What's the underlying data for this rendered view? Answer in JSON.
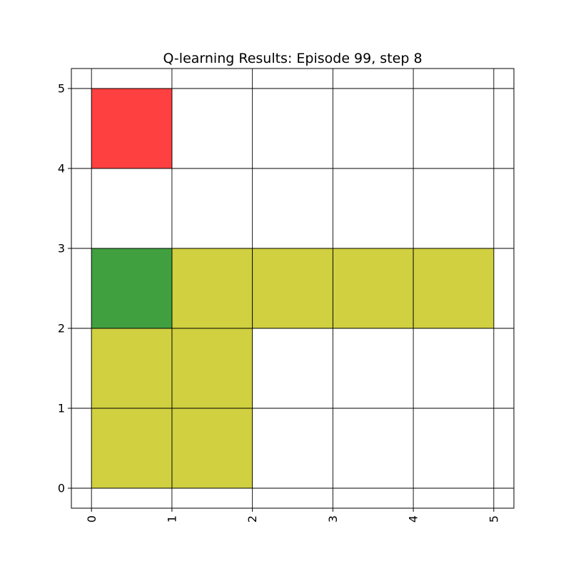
{
  "chart_data": {
    "type": "heatmap",
    "title": "Q-learning Results: Episode 99, step 8",
    "xlabel": "",
    "ylabel": "",
    "xlim": [
      -0.25,
      5.25
    ],
    "ylim": [
      -0.25,
      5.25
    ],
    "x_ticks": [
      "0",
      "1",
      "2",
      "3",
      "4",
      "5"
    ],
    "y_ticks": [
      "0",
      "1",
      "2",
      "3",
      "4",
      "5"
    ],
    "x_tick_rotation": "vertical",
    "grid": true,
    "cells": [
      {
        "x": 0,
        "y": 4,
        "color": "#ff4040"
      },
      {
        "x": 0,
        "y": 2,
        "color": "#40a040"
      },
      {
        "x": 1,
        "y": 2,
        "color": "#d0d040"
      },
      {
        "x": 2,
        "y": 2,
        "color": "#d0d040"
      },
      {
        "x": 3,
        "y": 2,
        "color": "#d0d040"
      },
      {
        "x": 4,
        "y": 2,
        "color": "#d0d040"
      },
      {
        "x": 0,
        "y": 1,
        "color": "#d0d040"
      },
      {
        "x": 1,
        "y": 1,
        "color": "#d0d040"
      },
      {
        "x": 0,
        "y": 0,
        "color": "#d0d040"
      },
      {
        "x": 1,
        "y": 0,
        "color": "#d0d040"
      }
    ]
  }
}
